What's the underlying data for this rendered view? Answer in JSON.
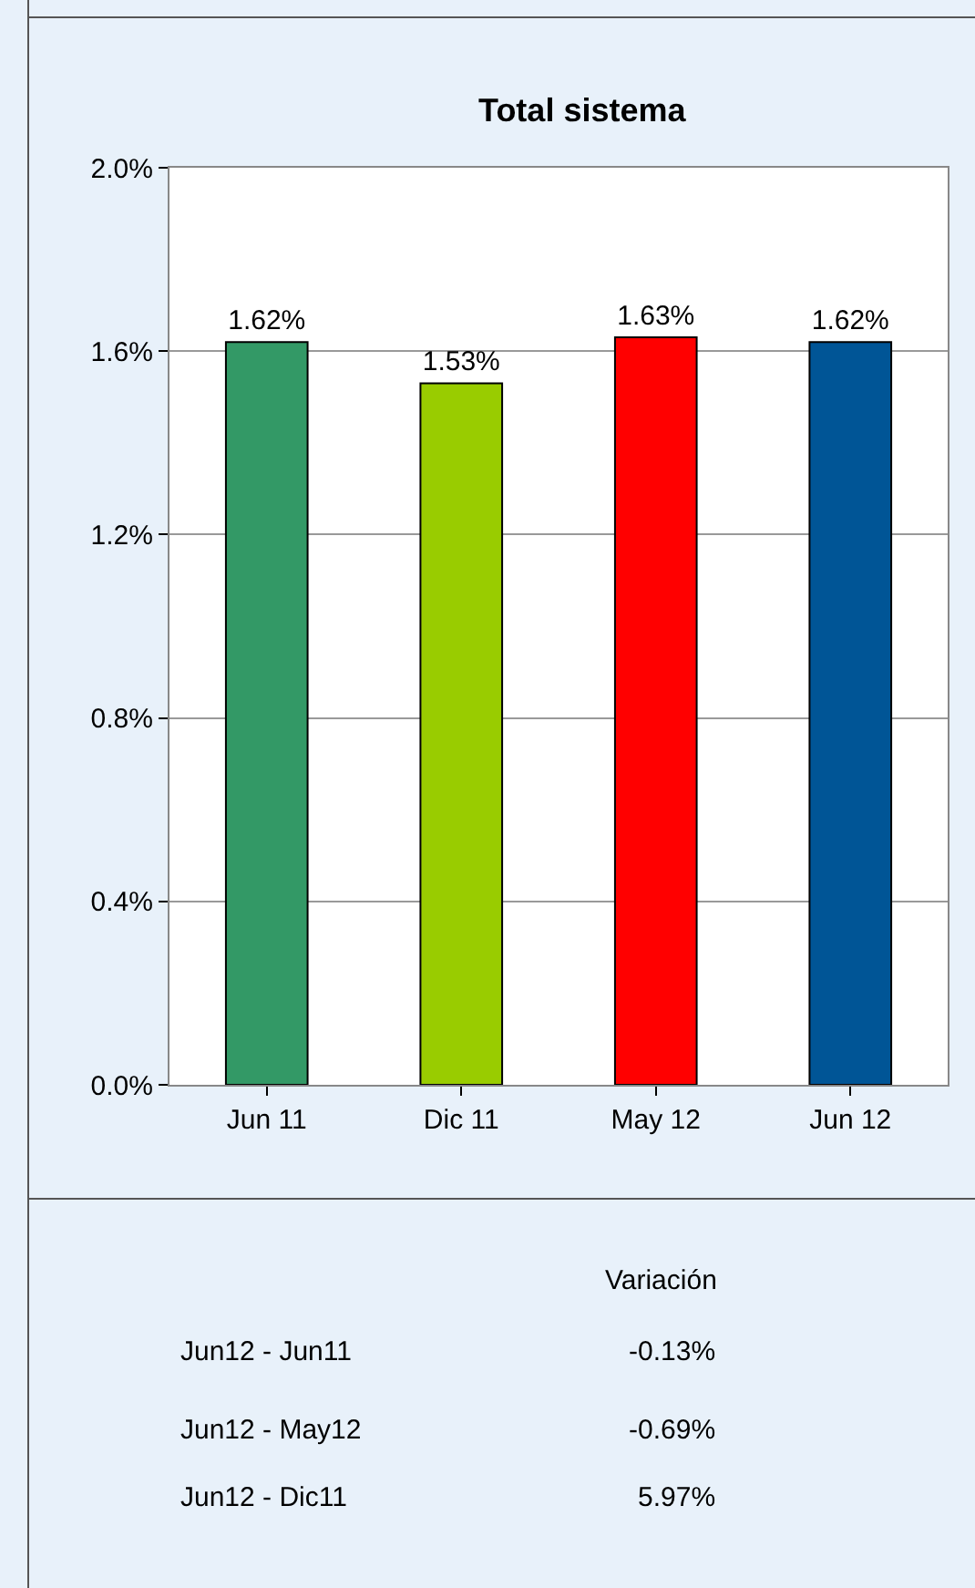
{
  "chart_data": {
    "type": "bar",
    "title": "Total sistema",
    "categories": [
      "Jun 11",
      "Dic 11",
      "May 12",
      "Jun 12"
    ],
    "values": [
      1.62,
      1.53,
      1.63,
      1.62
    ],
    "colors": [
      "#339966",
      "#99cc00",
      "#ff0000",
      "#005596"
    ],
    "value_labels": [
      "1.62%",
      "1.53%",
      "1.63%",
      "1.62%"
    ],
    "ylim": [
      0,
      2
    ],
    "yticks": [
      {
        "value": 0,
        "label": "0.0%"
      },
      {
        "value": 0.4,
        "label": "0.4%"
      },
      {
        "value": 0.8,
        "label": "0.8%"
      },
      {
        "value": 1.2,
        "label": "1.2%"
      },
      {
        "value": 1.6,
        "label": "1.6%"
      },
      {
        "value": 2,
        "label": "2.0%"
      }
    ],
    "grid": "y",
    "annotations": [
      "Variación",
      "Jun12 - Jun11",
      "-0.13%",
      "Jun12 - May12",
      "-0.69%",
      "Jun12 - Dic11",
      "5.97%"
    ]
  }
}
